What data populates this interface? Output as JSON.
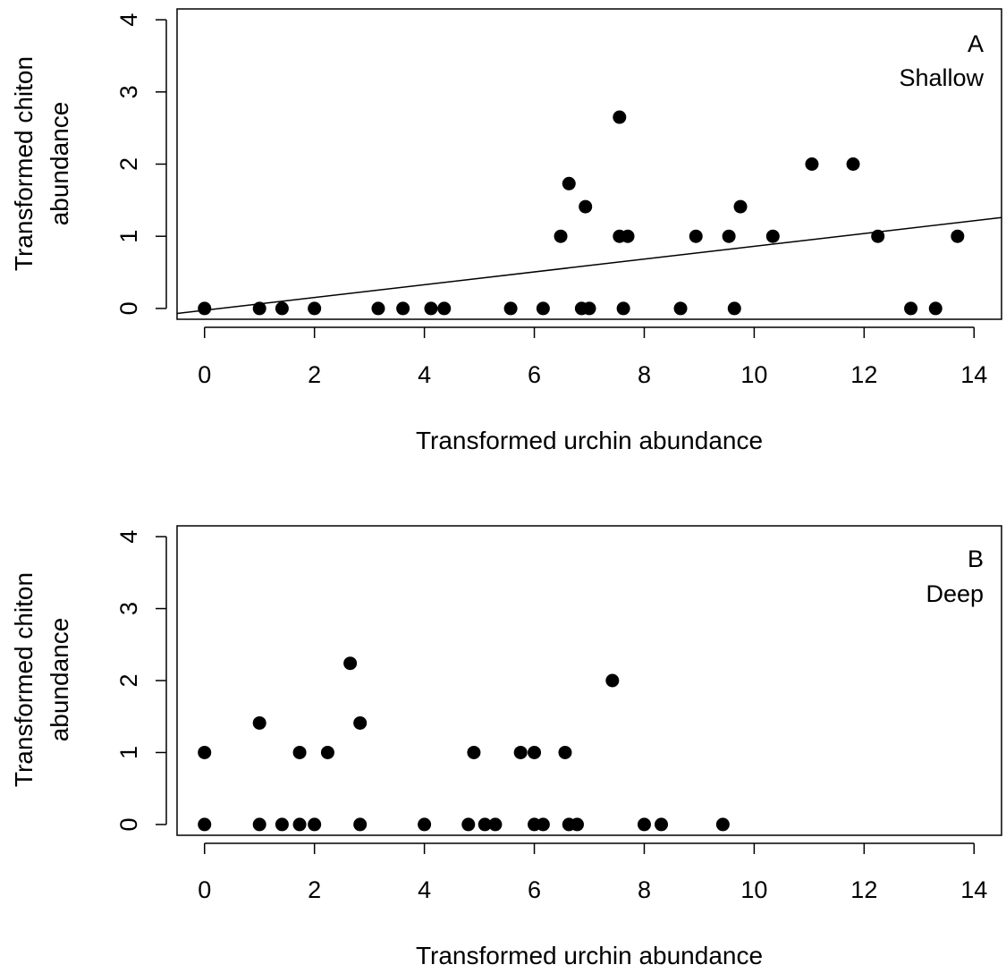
{
  "chart_data": [
    {
      "type": "scatter",
      "panel_label": "A",
      "panel_name": "Shallow",
      "xlabel": "Transformed urchin abundance",
      "ylabel_lines": [
        "Transformed chiton",
        "abundance"
      ],
      "xlim": [
        -0.5,
        14.5
      ],
      "ylim": [
        -0.15,
        4.15
      ],
      "x_ticks": [
        0,
        2,
        4,
        6,
        8,
        10,
        12,
        14
      ],
      "y_ticks": [
        0,
        1,
        2,
        3,
        4
      ],
      "regression_line": {
        "x": [
          -0.5,
          14.5
        ],
        "y": [
          -0.07,
          1.26
        ]
      },
      "points": {
        "x": [
          0,
          1,
          1.41,
          2,
          3.16,
          3.61,
          4.12,
          4.36,
          5.57,
          6.16,
          6.48,
          6.63,
          6.86,
          6.93,
          7,
          7.55,
          7.55,
          7.62,
          7.7,
          8.66,
          8.94,
          9.54,
          9.64,
          9.75,
          10.34,
          11.05,
          11.8,
          12.25,
          12.85,
          13.3,
          13.7
        ],
        "y": [
          0,
          0,
          0,
          0,
          0,
          0,
          0,
          0,
          0,
          0,
          1,
          1.73,
          0,
          1.41,
          0,
          2.65,
          1,
          0,
          1,
          0,
          1,
          1,
          0,
          1.41,
          1,
          2,
          2,
          1,
          0,
          0,
          1
        ]
      }
    },
    {
      "type": "scatter",
      "panel_label": "B",
      "panel_name": "Deep",
      "xlabel": "Transformed urchin abundance",
      "ylabel_lines": [
        "Transformed chiton",
        "abundance"
      ],
      "xlim": [
        -0.5,
        14.5
      ],
      "ylim": [
        -0.15,
        4.15
      ],
      "x_ticks": [
        0,
        2,
        4,
        6,
        8,
        10,
        12,
        14
      ],
      "y_ticks": [
        0,
        1,
        2,
        3,
        4
      ],
      "points": {
        "x": [
          0,
          0,
          1,
          1,
          1.41,
          1.73,
          1.73,
          2,
          2.24,
          2.65,
          2.83,
          2.83,
          4,
          4.8,
          4.9,
          5.1,
          5.29,
          5.75,
          6,
          6,
          6.16,
          6.56,
          6.63,
          6.78,
          7.42,
          8,
          8.31,
          9.43
        ],
        "y": [
          1,
          0,
          1.41,
          0,
          0,
          1,
          0,
          0,
          1,
          2.24,
          1.41,
          0,
          0,
          0,
          1,
          0,
          0,
          1,
          1,
          0,
          0,
          1,
          0,
          0,
          2,
          0,
          0,
          0
        ]
      }
    }
  ]
}
